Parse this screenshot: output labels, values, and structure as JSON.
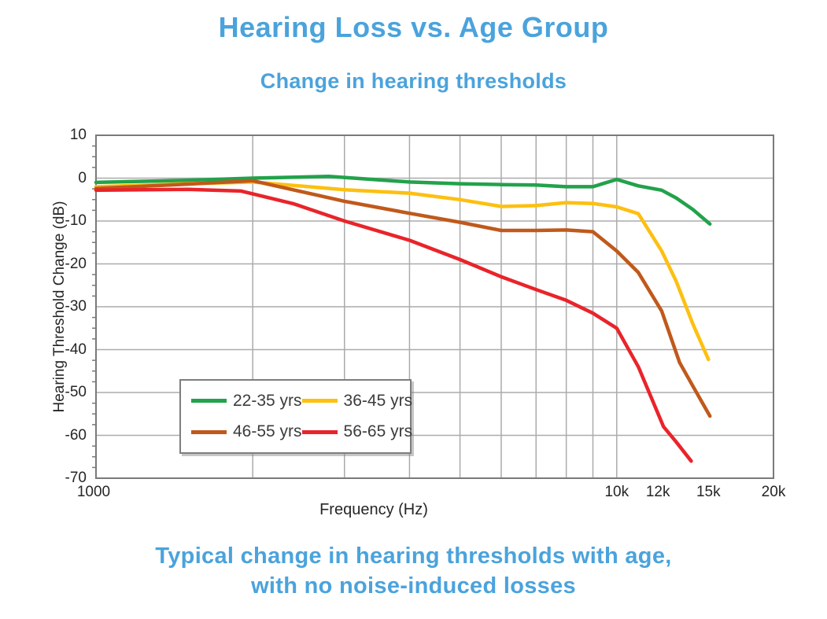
{
  "header": {
    "title": "Hearing Loss vs. Age Group",
    "subtitle": "Change in hearing thresholds"
  },
  "footer": {
    "caption_line1": "Typical change in hearing thresholds with age,",
    "caption_line2": "with no noise-induced losses"
  },
  "colors": {
    "accent_blue": "#4AA3DC"
  },
  "chart_data": {
    "type": "line",
    "title": "",
    "xlabel": "Frequency (Hz)",
    "ylabel": "Hearing Threshold Change (dB)",
    "x_scale": "log",
    "xlim": [
      1000,
      20000
    ],
    "ylim": [
      -70,
      10
    ],
    "grid": true,
    "legend_position": "inside-bottom-left",
    "y_ticks": [
      {
        "v": 10,
        "label": "10"
      },
      {
        "v": 0,
        "label": "0"
      },
      {
        "v": -10,
        "label": "-10"
      },
      {
        "v": -20,
        "label": "-20"
      },
      {
        "v": -30,
        "label": "-30"
      },
      {
        "v": -40,
        "label": "-40"
      },
      {
        "v": -50,
        "label": "-50"
      },
      {
        "v": -60,
        "label": "-60"
      },
      {
        "v": -70,
        "label": "-70"
      }
    ],
    "y_minor_tick_step": 2.5,
    "x_gridlines": [
      2000,
      3000,
      4000,
      5000,
      6000,
      7000,
      8000,
      9000,
      10000
    ],
    "x_ticks": [
      {
        "v": 1000,
        "label": "1000"
      },
      {
        "v": 10000,
        "label": "10k"
      },
      {
        "v": 12000,
        "label": "12k"
      },
      {
        "v": 15000,
        "label": "15k"
      },
      {
        "v": 20000,
        "label": "20k"
      }
    ],
    "style": {
      "grid_color": "#ABABAB",
      "border_color": "#7A7A7A",
      "minor_tick_color": "#7A7A7A",
      "series_width": 4.5
    },
    "series": [
      {
        "name": "22-35 yrs",
        "color": "#22A24B",
        "points": [
          [
            1000,
            -1
          ],
          [
            1500,
            -0.5
          ],
          [
            2000,
            0
          ],
          [
            2800,
            0.4
          ],
          [
            4000,
            -0.9
          ],
          [
            5000,
            -1.3
          ],
          [
            6000,
            -1.5
          ],
          [
            7000,
            -1.6
          ],
          [
            8000,
            -2
          ],
          [
            9000,
            -2
          ],
          [
            10000,
            -0.3
          ],
          [
            11000,
            -1.8
          ],
          [
            12200,
            -2.8
          ],
          [
            13000,
            -4.6
          ],
          [
            14000,
            -7.3
          ],
          [
            15100,
            -10.7
          ]
        ]
      },
      {
        "name": "36-45 yrs",
        "color": "#FDC011",
        "points": [
          [
            1000,
            -2
          ],
          [
            1500,
            -1.3
          ],
          [
            2000,
            -0.9
          ],
          [
            3000,
            -2.7
          ],
          [
            4000,
            -3.5
          ],
          [
            5000,
            -5
          ],
          [
            6000,
            -6.6
          ],
          [
            7000,
            -6.4
          ],
          [
            8000,
            -5.7
          ],
          [
            9000,
            -5.9
          ],
          [
            10000,
            -6.7
          ],
          [
            11000,
            -8.3
          ],
          [
            12200,
            -17
          ],
          [
            13000,
            -24
          ],
          [
            14000,
            -34
          ],
          [
            15000,
            -42.3
          ]
        ]
      },
      {
        "name": "46-55 yrs",
        "color": "#C0591B",
        "points": [
          [
            1000,
            -2.4
          ],
          [
            1500,
            -1.4
          ],
          [
            2000,
            -0.6
          ],
          [
            3000,
            -5.4
          ],
          [
            4000,
            -8.2
          ],
          [
            5000,
            -10.3
          ],
          [
            6000,
            -12.2
          ],
          [
            7000,
            -12.2
          ],
          [
            8000,
            -12.1
          ],
          [
            9000,
            -12.5
          ],
          [
            10000,
            -17
          ],
          [
            11000,
            -22
          ],
          [
            12200,
            -31
          ],
          [
            13200,
            -43
          ],
          [
            14000,
            -48.5
          ],
          [
            15100,
            -55.5
          ]
        ]
      },
      {
        "name": "56-65 yrs",
        "color": "#E9242A",
        "points": [
          [
            1000,
            -2.8
          ],
          [
            1500,
            -2.6
          ],
          [
            1900,
            -3
          ],
          [
            2400,
            -6
          ],
          [
            3000,
            -10
          ],
          [
            4000,
            -14.5
          ],
          [
            5000,
            -19
          ],
          [
            6000,
            -23
          ],
          [
            7000,
            -26
          ],
          [
            8000,
            -28.5
          ],
          [
            9000,
            -31.5
          ],
          [
            10000,
            -35
          ],
          [
            11000,
            -44
          ],
          [
            12300,
            -58
          ],
          [
            13000,
            -61.5
          ],
          [
            13900,
            -66
          ]
        ]
      }
    ]
  }
}
